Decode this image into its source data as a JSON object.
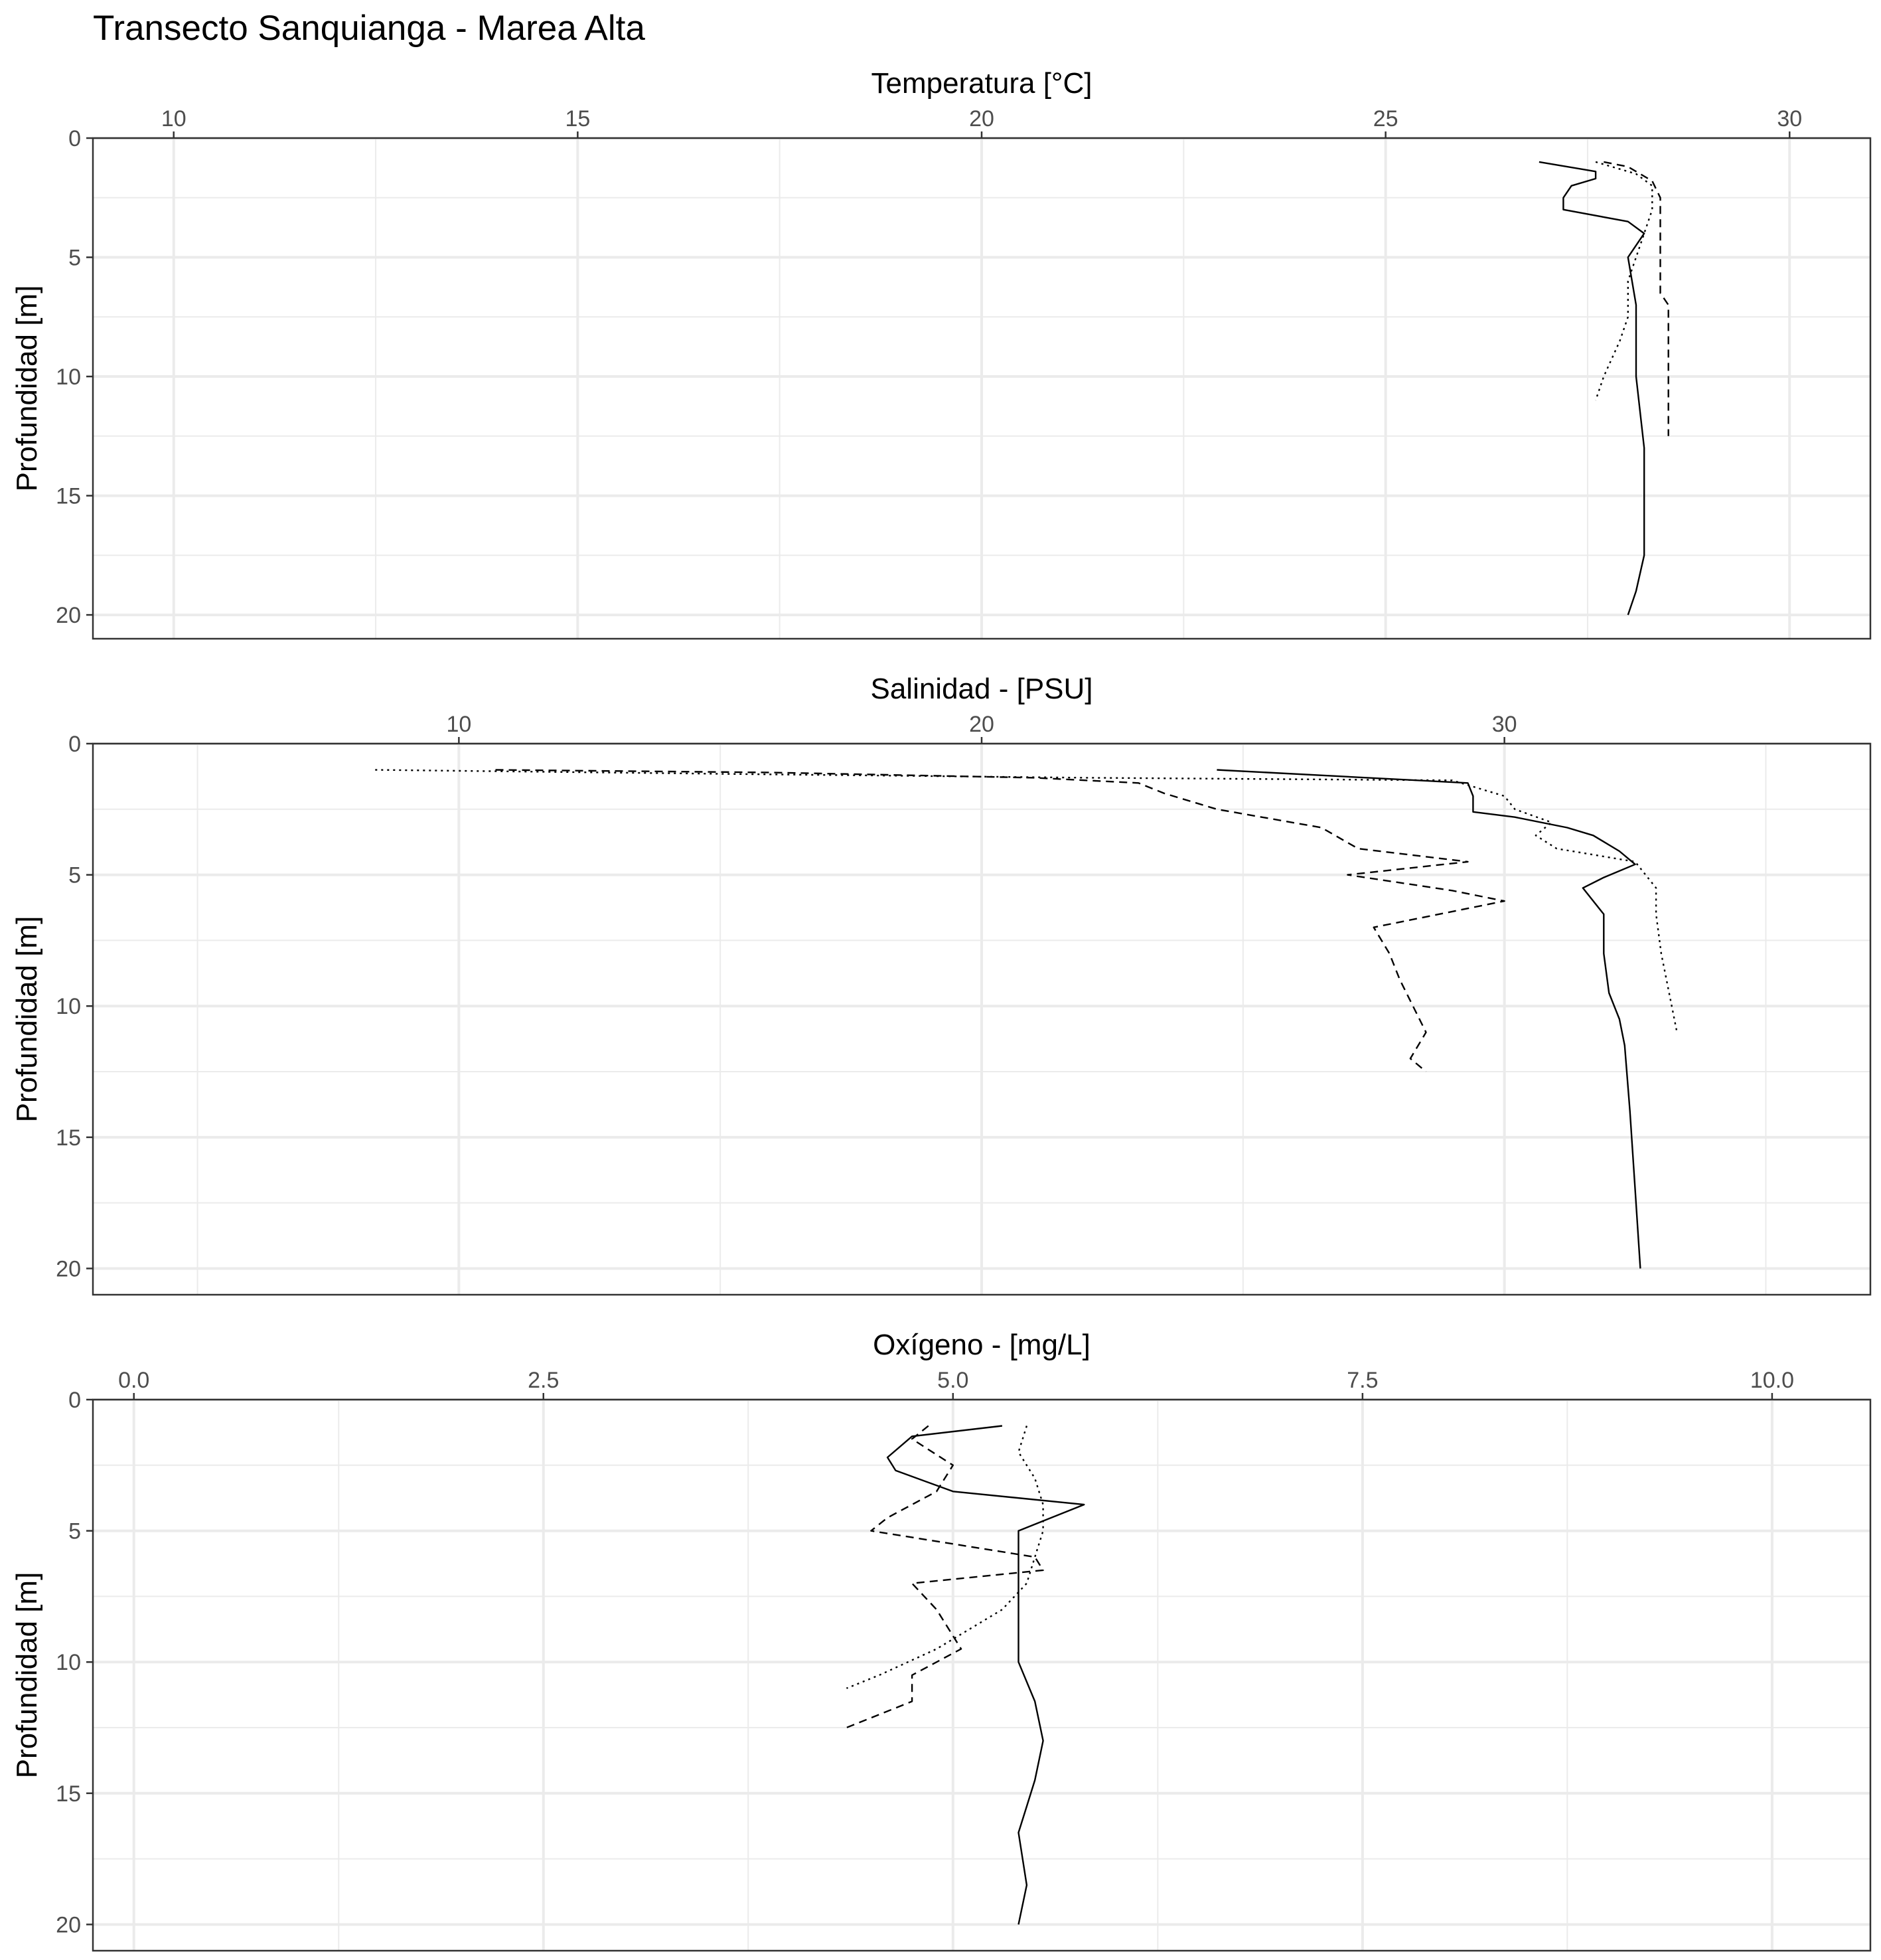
{
  "title": "Transecto Sanquianga - Marea Alta",
  "chart_data": [
    {
      "type": "line",
      "xlabel": "Temperatura [°C]",
      "ylabel": "Profundidad [m]",
      "xlim": [
        9,
        31
      ],
      "ylim": [
        0,
        21
      ],
      "y_reversed": true,
      "x_axis_position": "top",
      "xticks": [
        10,
        15,
        20,
        25,
        30
      ],
      "yticks": [
        0,
        5,
        10,
        15,
        20
      ],
      "grid": true,
      "series": [
        {
          "style": "solid",
          "points": [
            [
              26.9,
              1.0
            ],
            [
              27.6,
              1.4
            ],
            [
              27.6,
              1.7
            ],
            [
              27.3,
              2.0
            ],
            [
              27.2,
              2.5
            ],
            [
              27.2,
              3.0
            ],
            [
              28.0,
              3.5
            ],
            [
              28.2,
              4.0
            ],
            [
              28.0,
              5.0
            ],
            [
              28.1,
              7.0
            ],
            [
              28.1,
              10.0
            ],
            [
              28.2,
              13.0
            ],
            [
              28.2,
              15.0
            ],
            [
              28.2,
              17.5
            ],
            [
              28.1,
              19.0
            ],
            [
              28.0,
              20.0
            ]
          ]
        },
        {
          "style": "dashed",
          "points": [
            [
              27.7,
              1.0
            ],
            [
              28.0,
              1.2
            ],
            [
              28.3,
              1.8
            ],
            [
              28.4,
              2.5
            ],
            [
              28.4,
              4.0
            ],
            [
              28.4,
              6.5
            ],
            [
              28.5,
              7.0
            ],
            [
              28.5,
              8.0
            ],
            [
              28.5,
              10.0
            ],
            [
              28.5,
              12.5
            ]
          ]
        },
        {
          "style": "dotted",
          "points": [
            [
              27.6,
              1.0
            ],
            [
              28.1,
              1.5
            ],
            [
              28.3,
              2.0
            ],
            [
              28.3,
              3.0
            ],
            [
              28.2,
              4.0
            ],
            [
              28.1,
              5.0
            ],
            [
              28.0,
              6.0
            ],
            [
              28.0,
              7.5
            ],
            [
              27.9,
              8.5
            ],
            [
              27.7,
              10.0
            ],
            [
              27.6,
              11.0
            ]
          ]
        }
      ]
    },
    {
      "type": "line",
      "xlabel": "Salinidad - [PSU]",
      "ylabel": "Profundidad [m]",
      "xlim": [
        3,
        37
      ],
      "ylim": [
        0,
        21
      ],
      "y_reversed": true,
      "x_axis_position": "top",
      "xticks": [
        10,
        20,
        30
      ],
      "yticks": [
        0,
        5,
        10,
        15,
        20
      ],
      "grid": true,
      "series": [
        {
          "style": "solid",
          "points": [
            [
              24.5,
              1.0
            ],
            [
              29.3,
              1.5
            ],
            [
              29.4,
              2.0
            ],
            [
              29.4,
              2.6
            ],
            [
              30.2,
              2.8
            ],
            [
              31.2,
              3.2
            ],
            [
              31.7,
              3.5
            ],
            [
              32.2,
              4.1
            ],
            [
              32.5,
              4.6
            ],
            [
              31.9,
              5.1
            ],
            [
              31.5,
              5.5
            ],
            [
              31.9,
              6.5
            ],
            [
              31.9,
              8.0
            ],
            [
              32.0,
              9.5
            ],
            [
              32.2,
              10.5
            ],
            [
              32.3,
              11.5
            ],
            [
              32.4,
              14.0
            ],
            [
              32.5,
              17.0
            ],
            [
              32.6,
              20.0
            ]
          ]
        },
        {
          "style": "dashed",
          "points": [
            [
              10.7,
              1.0
            ],
            [
              16.0,
              1.1
            ],
            [
              21.0,
              1.3
            ],
            [
              23.0,
              1.5
            ],
            [
              23.5,
              1.9
            ],
            [
              24.5,
              2.5
            ],
            [
              26.5,
              3.2
            ],
            [
              27.2,
              4.0
            ],
            [
              29.3,
              4.5
            ],
            [
              27.0,
              5.0
            ],
            [
              29.0,
              5.6
            ],
            [
              30.0,
              6.0
            ],
            [
              27.5,
              7.0
            ],
            [
              27.8,
              8.0
            ],
            [
              28.0,
              9.0
            ],
            [
              28.5,
              11.0
            ],
            [
              28.2,
              12.0
            ],
            [
              28.5,
              12.5
            ]
          ]
        },
        {
          "style": "dotted",
          "points": [
            [
              8.4,
              1.0
            ],
            [
              15.0,
              1.15
            ],
            [
              22.0,
              1.3
            ],
            [
              29.0,
              1.4
            ],
            [
              30.0,
              2.0
            ],
            [
              30.2,
              2.5
            ],
            [
              30.9,
              3.0
            ],
            [
              30.6,
              3.5
            ],
            [
              31.0,
              4.0
            ],
            [
              32.5,
              4.5
            ],
            [
              32.9,
              5.5
            ],
            [
              32.9,
              6.5
            ],
            [
              33.0,
              8.0
            ],
            [
              33.1,
              9.0
            ],
            [
              33.2,
              10.0
            ],
            [
              33.3,
              11.0
            ]
          ]
        }
      ]
    },
    {
      "type": "line",
      "xlabel": "Oxígeno - [mg/L]",
      "ylabel": "Profundidad [m]",
      "xlim": [
        -0.25,
        10.6
      ],
      "ylim": [
        0,
        21
      ],
      "y_reversed": true,
      "x_axis_position": "top",
      "xticks": [
        "0.0",
        "2.5",
        "5.0",
        "7.5",
        "10.0"
      ],
      "yticks": [
        0,
        5,
        10,
        15,
        20
      ],
      "grid": true,
      "series": [
        {
          "style": "solid",
          "points": [
            [
              5.3,
              1.0
            ],
            [
              4.75,
              1.4
            ],
            [
              4.6,
              2.2
            ],
            [
              4.65,
              2.7
            ],
            [
              5.0,
              3.5
            ],
            [
              5.8,
              4.0
            ],
            [
              5.4,
              5.0
            ],
            [
              5.4,
              6.0
            ],
            [
              5.4,
              7.0
            ],
            [
              5.4,
              8.5
            ],
            [
              5.4,
              10.0
            ],
            [
              5.5,
              11.5
            ],
            [
              5.55,
              13.0
            ],
            [
              5.5,
              14.5
            ],
            [
              5.45,
              15.5
            ],
            [
              5.4,
              16.5
            ],
            [
              5.45,
              18.5
            ],
            [
              5.4,
              20.0
            ]
          ]
        },
        {
          "style": "dashed",
          "points": [
            [
              4.85,
              1.0
            ],
            [
              4.75,
              1.5
            ],
            [
              5.0,
              2.5
            ],
            [
              4.9,
              3.5
            ],
            [
              4.6,
              4.5
            ],
            [
              4.5,
              5.0
            ],
            [
              5.5,
              6.0
            ],
            [
              5.55,
              6.5
            ],
            [
              4.75,
              7.0
            ],
            [
              4.9,
              8.0
            ],
            [
              5.05,
              9.5
            ],
            [
              4.75,
              10.5
            ],
            [
              4.75,
              11.5
            ],
            [
              4.55,
              12.0
            ],
            [
              4.35,
              12.5
            ]
          ]
        },
        {
          "style": "dotted",
          "points": [
            [
              5.45,
              1.0
            ],
            [
              5.4,
              2.0
            ],
            [
              5.5,
              3.0
            ],
            [
              5.55,
              4.0
            ],
            [
              5.55,
              5.0
            ],
            [
              5.5,
              6.0
            ],
            [
              5.45,
              7.0
            ],
            [
              5.3,
              8.0
            ],
            [
              4.9,
              9.5
            ],
            [
              4.55,
              10.5
            ],
            [
              4.35,
              11.0
            ]
          ]
        }
      ]
    }
  ]
}
